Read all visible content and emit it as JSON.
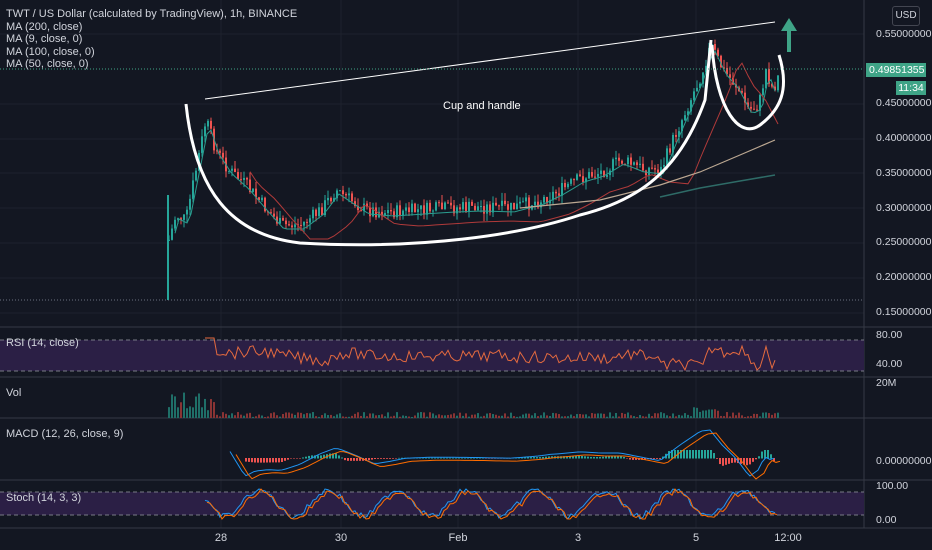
{
  "header": {
    "title": "TWT / US Dollar (calculated by TradingView), 1h, BINANCE",
    "indicators": [
      "MA (200, close)",
      "MA (9, close, 0)",
      "MA (100, close, 0)",
      "MA (50, close, 0)"
    ],
    "currency_button": "USD"
  },
  "price_axis": {
    "ticks": [
      "0.55000000",
      "0.45000000",
      "0.40000000",
      "0.35000000",
      "0.30000000",
      "0.25000000",
      "0.20000000",
      "0.15000000"
    ],
    "last_price": "0.49851355",
    "countdown": "11:34"
  },
  "annotation": {
    "text": "Cup and handle"
  },
  "panes": {
    "rsi": {
      "label": "RSI (14, close)",
      "ticks": [
        "80.00",
        "40.00"
      ]
    },
    "vol": {
      "label": "Vol",
      "ticks": [
        "20M"
      ]
    },
    "macd": {
      "label": "MACD (12, 26, close, 9)",
      "ticks": [
        "0.00000000"
      ]
    },
    "stoch": {
      "label": "Stoch (14, 3, 3)",
      "ticks": [
        "100.00",
        "0.00"
      ]
    }
  },
  "time_axis": {
    "ticks": [
      "28",
      "30",
      "Feb",
      "3",
      "5",
      "12:00"
    ]
  },
  "colors": {
    "background": "#131722",
    "up": "#26a69a",
    "down": "#ef5350",
    "accent": "#3fa487",
    "rsi_line": "#e46a3f",
    "ma200": "#2e6b67",
    "ma100": "#bca892",
    "ma50": "#b03a3a",
    "ma9": "#2a9d8f",
    "macd": "#2196f3",
    "signal": "#ff6d00",
    "stoch_k": "#2196f3",
    "stoch_d": "#ff6d00",
    "pane_band": "#2b1f45"
  }
}
